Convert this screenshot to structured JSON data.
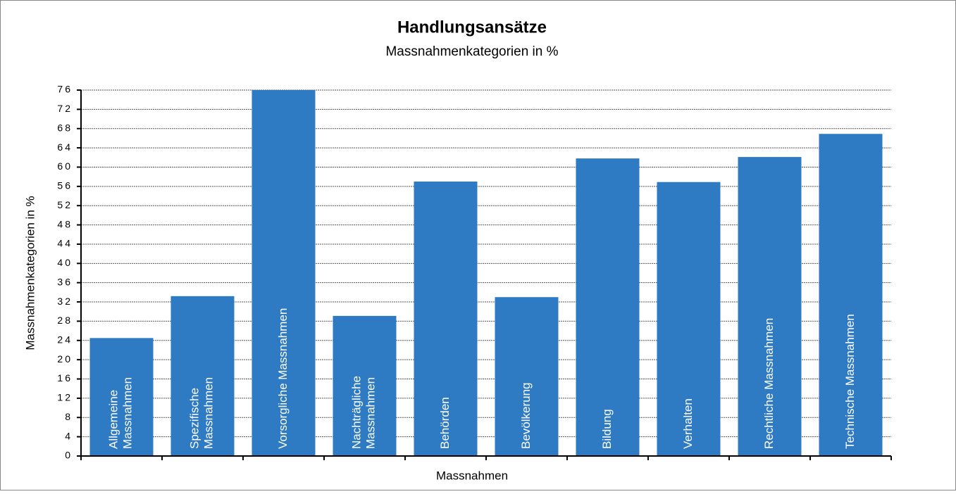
{
  "chart_data": {
    "type": "bar",
    "title": "Handlungsansätze",
    "subtitle": "Massnahmenkategorien in %",
    "x_label": "Massnahmen",
    "y_label": "Massnahmenkategorien in %",
    "categories": [
      "Allgemeine Massnahmen",
      "Spezifische Massnahmen",
      "Vorsorgliche Massnahmen",
      "Nachträgliche Massnahmen",
      "Behörden",
      "Bevölkerung",
      "Bildung",
      "Verhalten",
      "Rechtliche Massnahmen",
      "Technische Massnahmen"
    ],
    "values": [
      24.5,
      33.2,
      76,
      29.1,
      57,
      33,
      61.8,
      56.9,
      62.1,
      66.9
    ],
    "color": "#2e7bc4",
    "ylim": [
      0,
      76
    ],
    "yticks": [
      0,
      4,
      8,
      12,
      16,
      20,
      24,
      28,
      32,
      36,
      40,
      44,
      48,
      52,
      56,
      60,
      64,
      68,
      72,
      76
    ],
    "grid": true
  }
}
